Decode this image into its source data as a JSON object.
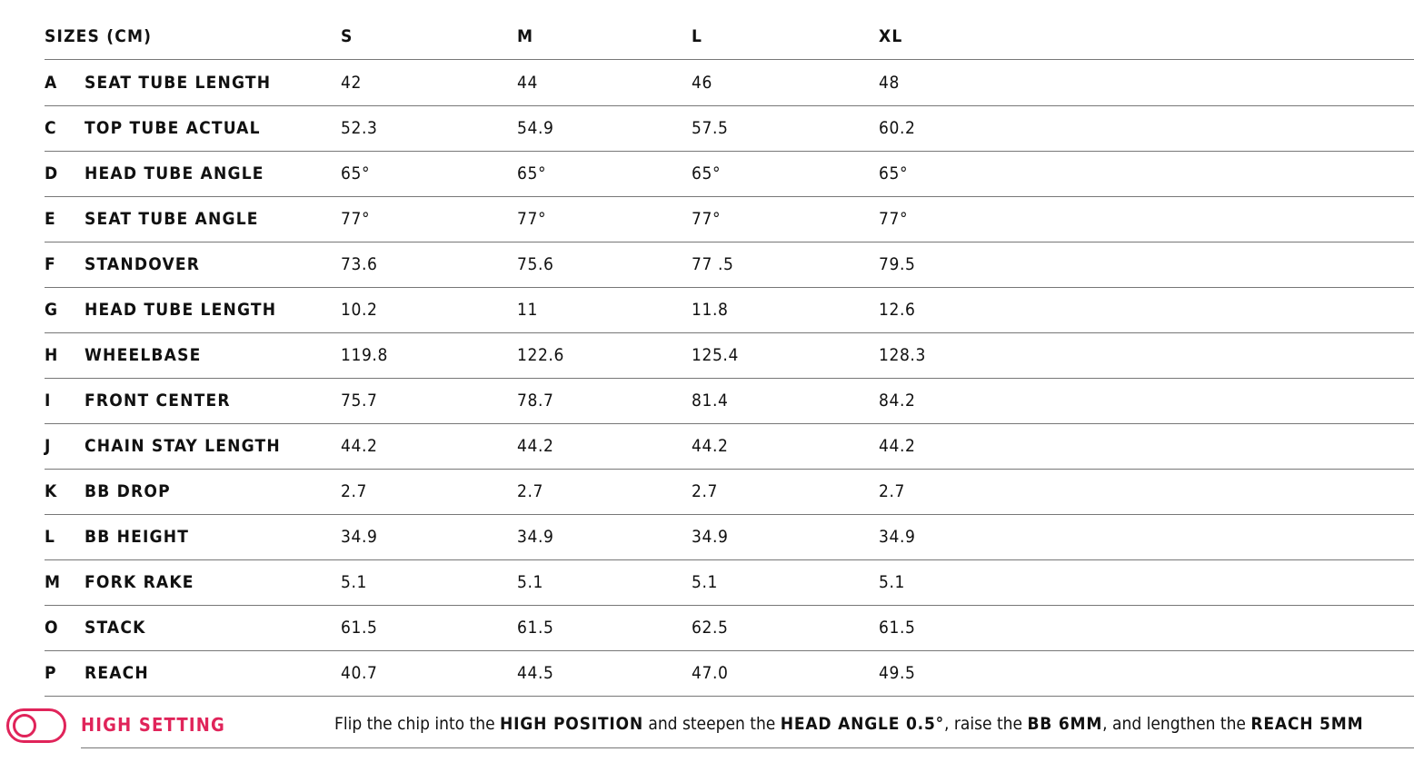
{
  "header": {
    "title": "SIZES (CM)",
    "sizes": [
      "S",
      "M",
      "L",
      "XL"
    ]
  },
  "rows": [
    {
      "letter": "A",
      "name": "SEAT TUBE LENGTH",
      "values": [
        "42",
        "44",
        "46",
        "48"
      ]
    },
    {
      "letter": "C",
      "name": "TOP TUBE ACTUAL",
      "values": [
        "52.3",
        "54.9",
        "57.5",
        "60.2"
      ]
    },
    {
      "letter": "D",
      "name": "HEAD TUBE ANGLE",
      "values": [
        "65°",
        "65°",
        "65°",
        "65°"
      ]
    },
    {
      "letter": "E",
      "name": "SEAT TUBE ANGLE",
      "values": [
        "77°",
        "77°",
        "77°",
        "77°"
      ]
    },
    {
      "letter": "F",
      "name": "STANDOVER",
      "values": [
        "73.6",
        "75.6",
        "77 .5",
        "79.5"
      ]
    },
    {
      "letter": "G",
      "name": "HEAD TUBE LENGTH",
      "values": [
        "10.2",
        "11",
        "11.8",
        "12.6"
      ]
    },
    {
      "letter": "H",
      "name": "WHEELBASE",
      "values": [
        "119.8",
        "122.6",
        "125.4",
        "128.3"
      ]
    },
    {
      "letter": "I",
      "name": "FRONT CENTER",
      "values": [
        "75.7",
        "78.7",
        "81.4",
        "84.2"
      ]
    },
    {
      "letter": "J",
      "name": "CHAIN STAY LENGTH",
      "values": [
        "44.2",
        "44.2",
        "44.2",
        "44.2"
      ]
    },
    {
      "letter": "K",
      "name": "BB DROP",
      "values": [
        "2.7",
        "2.7",
        "2.7",
        "2.7"
      ]
    },
    {
      "letter": "L",
      "name": "BB HEIGHT",
      "values": [
        "34.9",
        "34.9",
        "34.9",
        "34.9"
      ]
    },
    {
      "letter": "M",
      "name": "FORK RAKE",
      "values": [
        "5.1",
        "5.1",
        "5.1",
        "5.1"
      ]
    },
    {
      "letter": "O",
      "name": "STACK",
      "values": [
        "61.5",
        "61.5",
        "62.5",
        "61.5"
      ]
    },
    {
      "letter": "P",
      "name": "REACH",
      "values": [
        "40.7",
        "44.5",
        "47.0",
        "49.5"
      ]
    }
  ],
  "high_setting": {
    "label": "HIGH SETTING",
    "accent": "#e0245a",
    "toggle_icon": "toggle-icon",
    "description": [
      {
        "t": "Flip the chip into the ",
        "b": false
      },
      {
        "t": "HIGH POSITION",
        "b": true
      },
      {
        "t": " and steepen the ",
        "b": false
      },
      {
        "t": "HEAD ANGLE 0.5°",
        "b": true
      },
      {
        "t": ", raise the ",
        "b": false
      },
      {
        "t": "BB 6MM",
        "b": true
      },
      {
        "t": ", and lengthen the ",
        "b": false
      },
      {
        "t": "REACH 5MM",
        "b": true
      }
    ]
  }
}
